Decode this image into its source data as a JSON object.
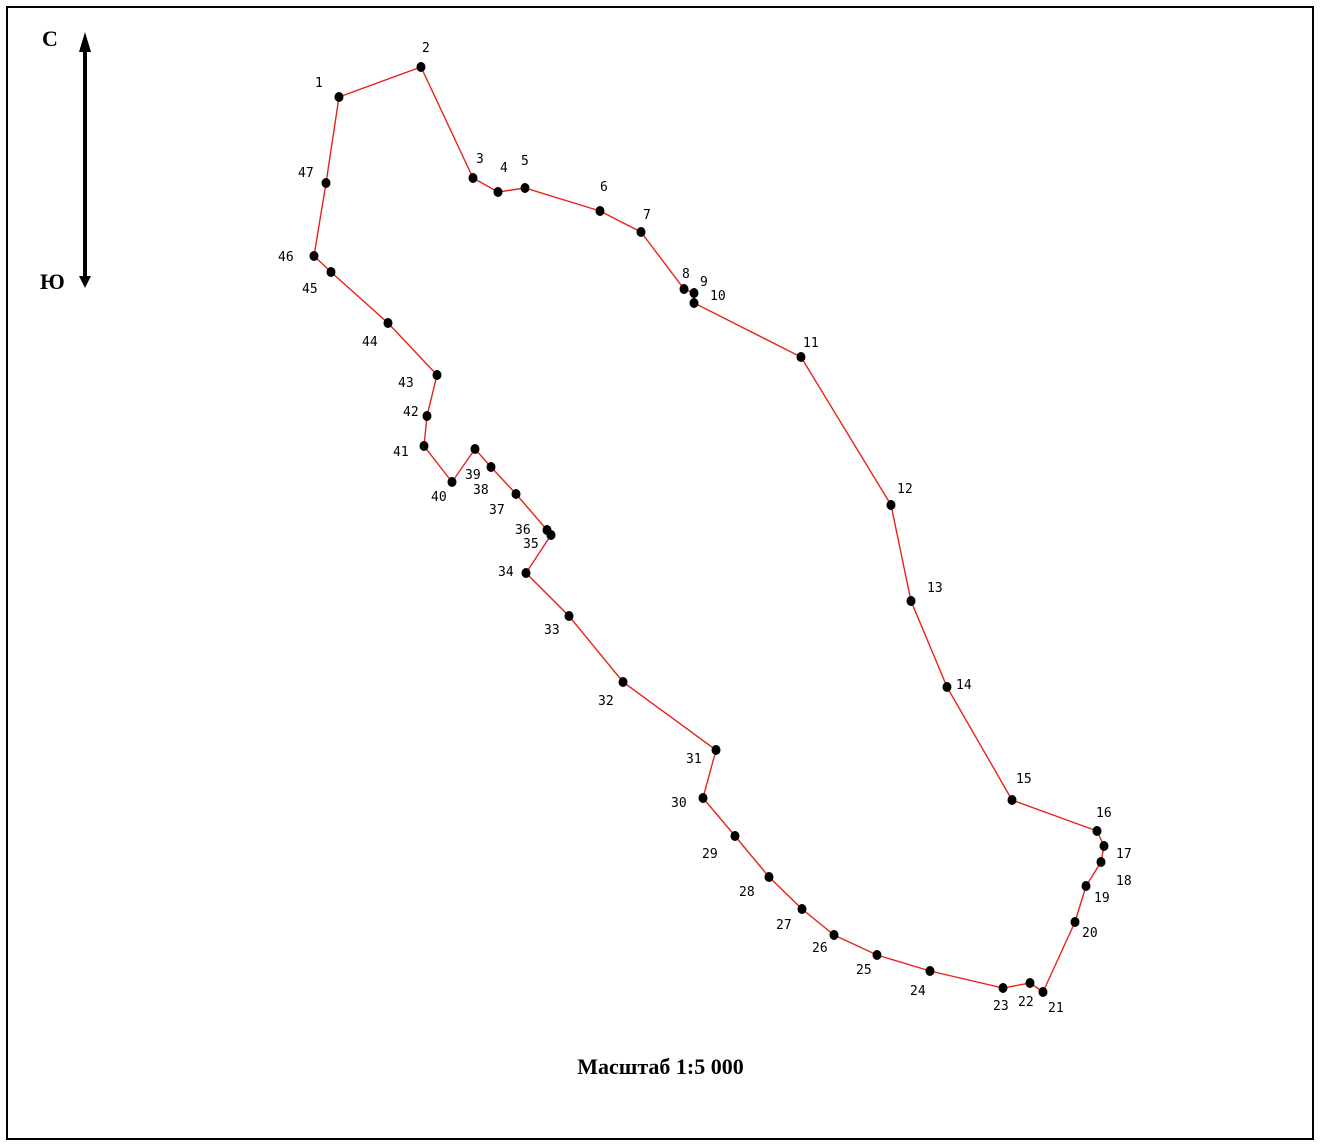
{
  "compass": {
    "north_label": "С",
    "south_label": "Ю"
  },
  "scale_label": "Масштаб 1:5 000",
  "boundary_color": "#e8231a",
  "point_color": "#000000",
  "points": [
    {
      "n": "1"
    },
    {
      "n": "2"
    },
    {
      "n": "3"
    },
    {
      "n": "4"
    },
    {
      "n": "5"
    },
    {
      "n": "6"
    },
    {
      "n": "7"
    },
    {
      "n": "8"
    },
    {
      "n": "9"
    },
    {
      "n": "10"
    },
    {
      "n": "11"
    },
    {
      "n": "12"
    },
    {
      "n": "13"
    },
    {
      "n": "14"
    },
    {
      "n": "15"
    },
    {
      "n": "16"
    },
    {
      "n": "17"
    },
    {
      "n": "18"
    },
    {
      "n": "19"
    },
    {
      "n": "20"
    },
    {
      "n": "21"
    },
    {
      "n": "22"
    },
    {
      "n": "23"
    },
    {
      "n": "24"
    },
    {
      "n": "25"
    },
    {
      "n": "26"
    },
    {
      "n": "27"
    },
    {
      "n": "28"
    },
    {
      "n": "29"
    },
    {
      "n": "30"
    },
    {
      "n": "31"
    },
    {
      "n": "32"
    },
    {
      "n": "33"
    },
    {
      "n": "34"
    },
    {
      "n": "35"
    },
    {
      "n": "36"
    },
    {
      "n": "37"
    },
    {
      "n": "38"
    },
    {
      "n": "39"
    },
    {
      "n": "40"
    },
    {
      "n": "41"
    },
    {
      "n": "42"
    },
    {
      "n": "43"
    },
    {
      "n": "44"
    },
    {
      "n": "45"
    },
    {
      "n": "46"
    },
    {
      "n": "47"
    }
  ]
}
